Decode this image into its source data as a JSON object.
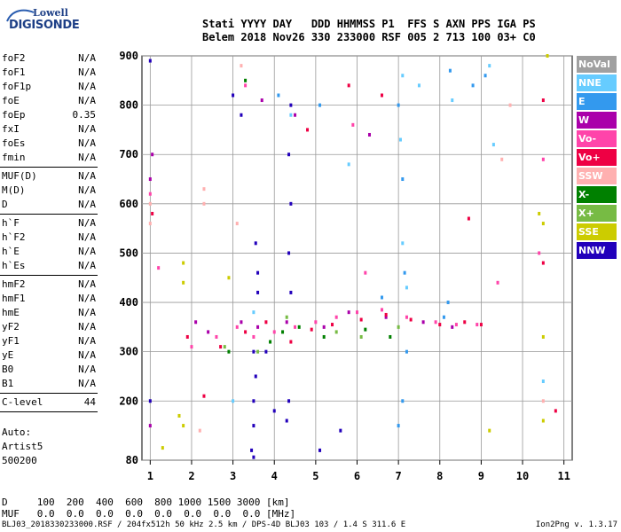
{
  "logo": {
    "line1": "Lowell",
    "line2": "DIGISONDE"
  },
  "header": {
    "labels": "Stati YYYY DAY   DDD HHMMSS P1  FFS S AXN PPS IGA PS",
    "values": "Belem 2018 Nov26 330 233000 RSF 005 2 713 100 03+ C0"
  },
  "params": {
    "group1": [
      {
        "k": "foF2",
        "v": "N/A"
      },
      {
        "k": "foF1",
        "v": "N/A"
      },
      {
        "k": "foF1p",
        "v": "N/A"
      },
      {
        "k": "foE",
        "v": "N/A"
      },
      {
        "k": "foEp",
        "v": "0.35"
      },
      {
        "k": "fxI",
        "v": "N/A"
      },
      {
        "k": "foEs",
        "v": "N/A"
      },
      {
        "k": "fmin",
        "v": "N/A"
      }
    ],
    "group2": [
      {
        "k": "MUF(D)",
        "v": "N/A"
      },
      {
        "k": "M(D)",
        "v": "N/A"
      },
      {
        "k": "D",
        "v": "N/A"
      }
    ],
    "group3": [
      {
        "k": "h`F",
        "v": "N/A"
      },
      {
        "k": "h`F2",
        "v": "N/A"
      },
      {
        "k": "h`E",
        "v": "N/A"
      },
      {
        "k": "h`Es",
        "v": "N/A"
      }
    ],
    "group4": [
      {
        "k": "hmF2",
        "v": "N/A"
      },
      {
        "k": "hmF1",
        "v": "N/A"
      },
      {
        "k": "hmE",
        "v": "N/A"
      },
      {
        "k": "yF2",
        "v": "N/A"
      },
      {
        "k": "yF1",
        "v": "N/A"
      },
      {
        "k": "yE",
        "v": "N/A"
      },
      {
        "k": "B0",
        "v": "N/A"
      },
      {
        "k": "B1",
        "v": "N/A"
      }
    ],
    "group5": [
      {
        "k": "C-level",
        "v": "44"
      }
    ]
  },
  "auto": {
    "line1": "Auto:",
    "line2": "Artist5",
    "line3": "500200"
  },
  "legend": [
    {
      "label": "NoVal",
      "color": "#a0a0a0"
    },
    {
      "label": "NNE",
      "color": "#66ccff"
    },
    {
      "label": "E",
      "color": "#3399ee"
    },
    {
      "label": "W",
      "color": "#aa00aa"
    },
    {
      "label": "Vo-",
      "color": "#ff44aa"
    },
    {
      "label": "Vo+",
      "color": "#ee0044"
    },
    {
      "label": "SSW",
      "color": "#ffb0b0"
    },
    {
      "label": "X-",
      "color": "#008000"
    },
    {
      "label": "X+",
      "color": "#77bb44"
    },
    {
      "label": "SSE",
      "color": "#cccc00"
    },
    {
      "label": "NNW",
      "color": "#2200bb"
    }
  ],
  "dmuf": {
    "d_row": "D     100  200  400  600  800 1000 1500 3000 [km]",
    "muf_row": "MUF   0.0  0.0  0.0  0.0  0.0  0.0  0.0  0.0 [MHz]"
  },
  "footer": "BLJ03_2018330233000.RSF / 204fx512h 50 kHz 2.5 km / DPS-4D BLJ03 103 / 1.4 S 311.6 E",
  "version": "Ion2Png v. 1.3.17",
  "chart_data": {
    "type": "scatter",
    "title": "",
    "xlabel": "",
    "ylabel": "",
    "xlim": [
      0.8,
      11.2
    ],
    "ylim": [
      80,
      900
    ],
    "x_ticks": [
      1,
      2,
      3,
      4,
      5,
      6,
      7,
      8,
      9,
      10,
      11
    ],
    "y_ticks": [
      80,
      200,
      300,
      400,
      500,
      600,
      700,
      800,
      900
    ],
    "grid": true,
    "legend_position": "right",
    "series": [
      {
        "name": "NNE",
        "points": [
          [
            7.1,
            860
          ],
          [
            7.05,
            730
          ],
          [
            7.1,
            520
          ],
          [
            7.2,
            430
          ],
          [
            5.8,
            680
          ],
          [
            8.3,
            810
          ],
          [
            9.2,
            880
          ],
          [
            9.3,
            720
          ],
          [
            7.5,
            840
          ],
          [
            3.5,
            380
          ],
          [
            4.4,
            780
          ],
          [
            10.5,
            240
          ],
          [
            3.0,
            200
          ]
        ]
      },
      {
        "name": "E",
        "points": [
          [
            7.0,
            800
          ],
          [
            7.1,
            650
          ],
          [
            7.15,
            460
          ],
          [
            7.1,
            200
          ],
          [
            7.0,
            150
          ],
          [
            8.2,
            400
          ],
          [
            8.25,
            870
          ],
          [
            8.8,
            840
          ],
          [
            9.1,
            860
          ],
          [
            5.1,
            800
          ],
          [
            4.1,
            820
          ],
          [
            6.6,
            410
          ],
          [
            8.1,
            370
          ],
          [
            7.2,
            300
          ]
        ]
      },
      {
        "name": "W",
        "points": [
          [
            1.0,
            650
          ],
          [
            1.0,
            150
          ],
          [
            2.1,
            360
          ],
          [
            2.4,
            340
          ],
          [
            3.2,
            360
          ],
          [
            3.6,
            350
          ],
          [
            4.3,
            360
          ],
          [
            4.5,
            780
          ],
          [
            5.2,
            350
          ],
          [
            5.8,
            380
          ],
          [
            6.3,
            740
          ],
          [
            6.7,
            370
          ],
          [
            7.6,
            360
          ],
          [
            8.3,
            350
          ],
          [
            1.05,
            700
          ],
          [
            3.7,
            810
          ]
        ]
      },
      {
        "name": "Vo-",
        "points": [
          [
            1.0,
            620
          ],
          [
            2.0,
            310
          ],
          [
            2.6,
            330
          ],
          [
            3.1,
            350
          ],
          [
            3.5,
            330
          ],
          [
            4.0,
            340
          ],
          [
            4.5,
            350
          ],
          [
            5.0,
            360
          ],
          [
            5.5,
            370
          ],
          [
            6.0,
            380
          ],
          [
            6.6,
            385
          ],
          [
            7.2,
            370
          ],
          [
            7.9,
            360
          ],
          [
            8.4,
            355
          ],
          [
            8.9,
            355
          ],
          [
            10.4,
            500
          ],
          [
            6.2,
            460
          ],
          [
            9.4,
            440
          ],
          [
            5.9,
            760
          ],
          [
            10.5,
            690
          ],
          [
            3.3,
            840
          ],
          [
            1.2,
            470
          ]
        ]
      },
      {
        "name": "Vo+",
        "points": [
          [
            1.05,
            580
          ],
          [
            1.9,
            330
          ],
          [
            2.7,
            310
          ],
          [
            3.3,
            340
          ],
          [
            3.8,
            360
          ],
          [
            4.4,
            320
          ],
          [
            4.9,
            345
          ],
          [
            5.4,
            355
          ],
          [
            6.1,
            365
          ],
          [
            6.7,
            375
          ],
          [
            7.3,
            365
          ],
          [
            8.0,
            355
          ],
          [
            8.6,
            360
          ],
          [
            9.0,
            355
          ],
          [
            10.5,
            480
          ],
          [
            6.6,
            820
          ],
          [
            5.8,
            840
          ],
          [
            4.8,
            750
          ],
          [
            8.7,
            570
          ],
          [
            10.5,
            810
          ],
          [
            2.3,
            210
          ],
          [
            10.8,
            180
          ]
        ]
      },
      {
        "name": "SSW",
        "points": [
          [
            1.0,
            600
          ],
          [
            1.0,
            560
          ],
          [
            2.3,
            630
          ],
          [
            2.3,
            600
          ],
          [
            3.2,
            880
          ],
          [
            3.1,
            560
          ],
          [
            2.2,
            140
          ],
          [
            9.5,
            690
          ],
          [
            9.7,
            800
          ],
          [
            10.5,
            200
          ]
        ]
      },
      {
        "name": "X-",
        "points": [
          [
            3.3,
            850
          ],
          [
            4.6,
            350
          ],
          [
            5.2,
            330
          ],
          [
            6.2,
            345
          ],
          [
            6.8,
            330
          ],
          [
            3.9,
            320
          ],
          [
            4.2,
            340
          ],
          [
            2.9,
            300
          ]
        ]
      },
      {
        "name": "X+",
        "points": [
          [
            4.3,
            370
          ],
          [
            5.5,
            340
          ],
          [
            6.1,
            330
          ],
          [
            2.8,
            310
          ],
          [
            3.6,
            300
          ],
          [
            7.0,
            350
          ]
        ]
      },
      {
        "name": "SSE",
        "points": [
          [
            1.8,
            480
          ],
          [
            1.8,
            440
          ],
          [
            1.7,
            170
          ],
          [
            1.8,
            150
          ],
          [
            2.9,
            450
          ],
          [
            10.4,
            580
          ],
          [
            10.5,
            560
          ],
          [
            10.5,
            330
          ],
          [
            10.6,
            900
          ],
          [
            10.5,
            160
          ],
          [
            1.3,
            105
          ],
          [
            9.2,
            140
          ]
        ]
      },
      {
        "name": "NNW",
        "points": [
          [
            4.4,
            800
          ],
          [
            4.35,
            700
          ],
          [
            4.4,
            600
          ],
          [
            4.35,
            500
          ],
          [
            4.4,
            420
          ],
          [
            4.35,
            200
          ],
          [
            4.3,
            160
          ],
          [
            3.6,
            460
          ],
          [
            3.55,
            520
          ],
          [
            3.6,
            420
          ],
          [
            3.5,
            300
          ],
          [
            3.55,
            250
          ],
          [
            3.5,
            200
          ],
          [
            3.5,
            150
          ],
          [
            3.45,
            100
          ],
          [
            1.0,
            890
          ],
          [
            1.0,
            200
          ],
          [
            3.0,
            820
          ],
          [
            3.2,
            780
          ],
          [
            5.1,
            100
          ],
          [
            5.6,
            140
          ],
          [
            4.0,
            180
          ],
          [
            3.8,
            300
          ],
          [
            3.5,
            86
          ]
        ]
      }
    ]
  }
}
